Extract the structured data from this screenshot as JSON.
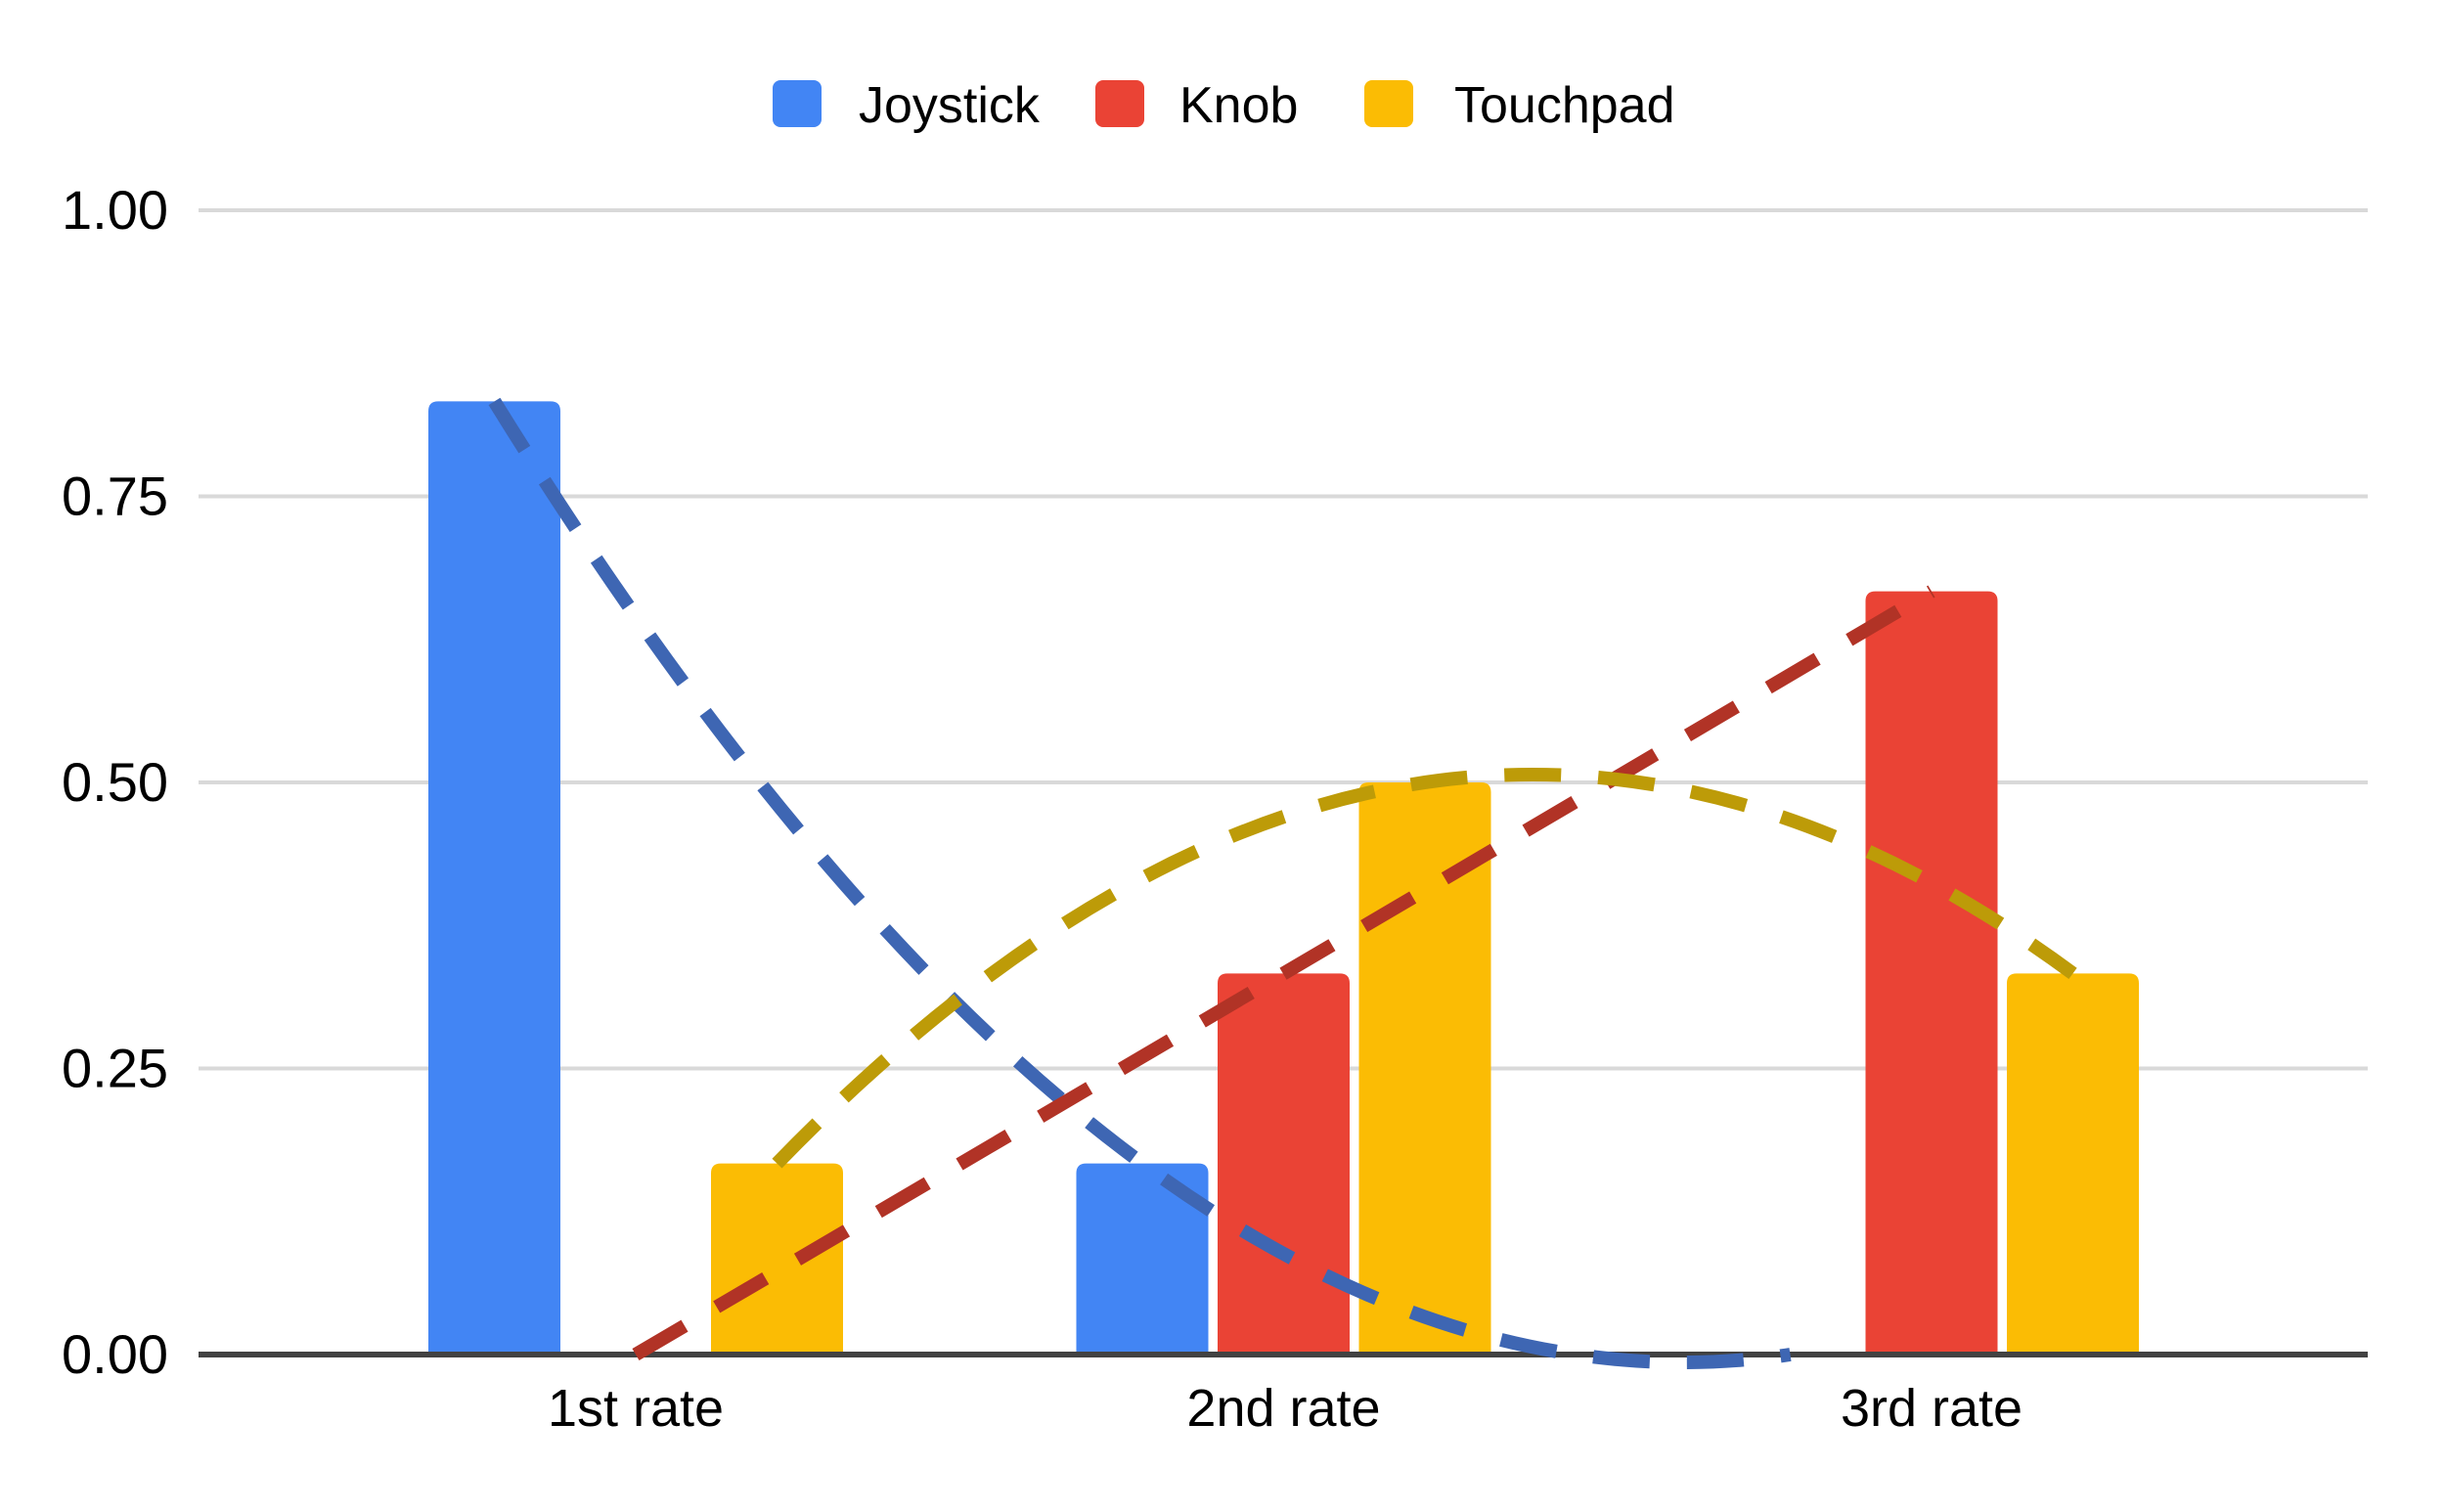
{
  "chart_data": {
    "type": "bar",
    "title": "",
    "xlabel": "",
    "ylabel": "",
    "categories": [
      "1st rate",
      "2nd rate",
      "3rd rate"
    ],
    "series": [
      {
        "name": "Joystick",
        "color": "#4285F4",
        "trend_color": "#3E66B3",
        "values": [
          0.833,
          0.167,
          0
        ]
      },
      {
        "name": "Knob",
        "color": "#EA4335",
        "trend_color": "#B13326",
        "values": [
          0,
          0.333,
          0.667
        ]
      },
      {
        "name": "Touchpad",
        "color": "#FBBC04",
        "trend_color": "#BD9B08",
        "values": [
          0.167,
          0.5,
          0.333
        ]
      }
    ],
    "y_axis": {
      "min": 0,
      "max": 1,
      "tick_labels": [
        "0.00",
        "0.25",
        "0.50",
        "0.75",
        "1.00"
      ],
      "tick_values": [
        0,
        0.25,
        0.5,
        0.75,
        1.0
      ]
    },
    "legend_position": "top",
    "grid": true,
    "trendlines": true,
    "trendline_style": "dashed",
    "colors": {
      "background": "#FFFFFF",
      "gridline": "#D9D9D9",
      "axis_line": "#424242",
      "text": "#000000"
    }
  }
}
